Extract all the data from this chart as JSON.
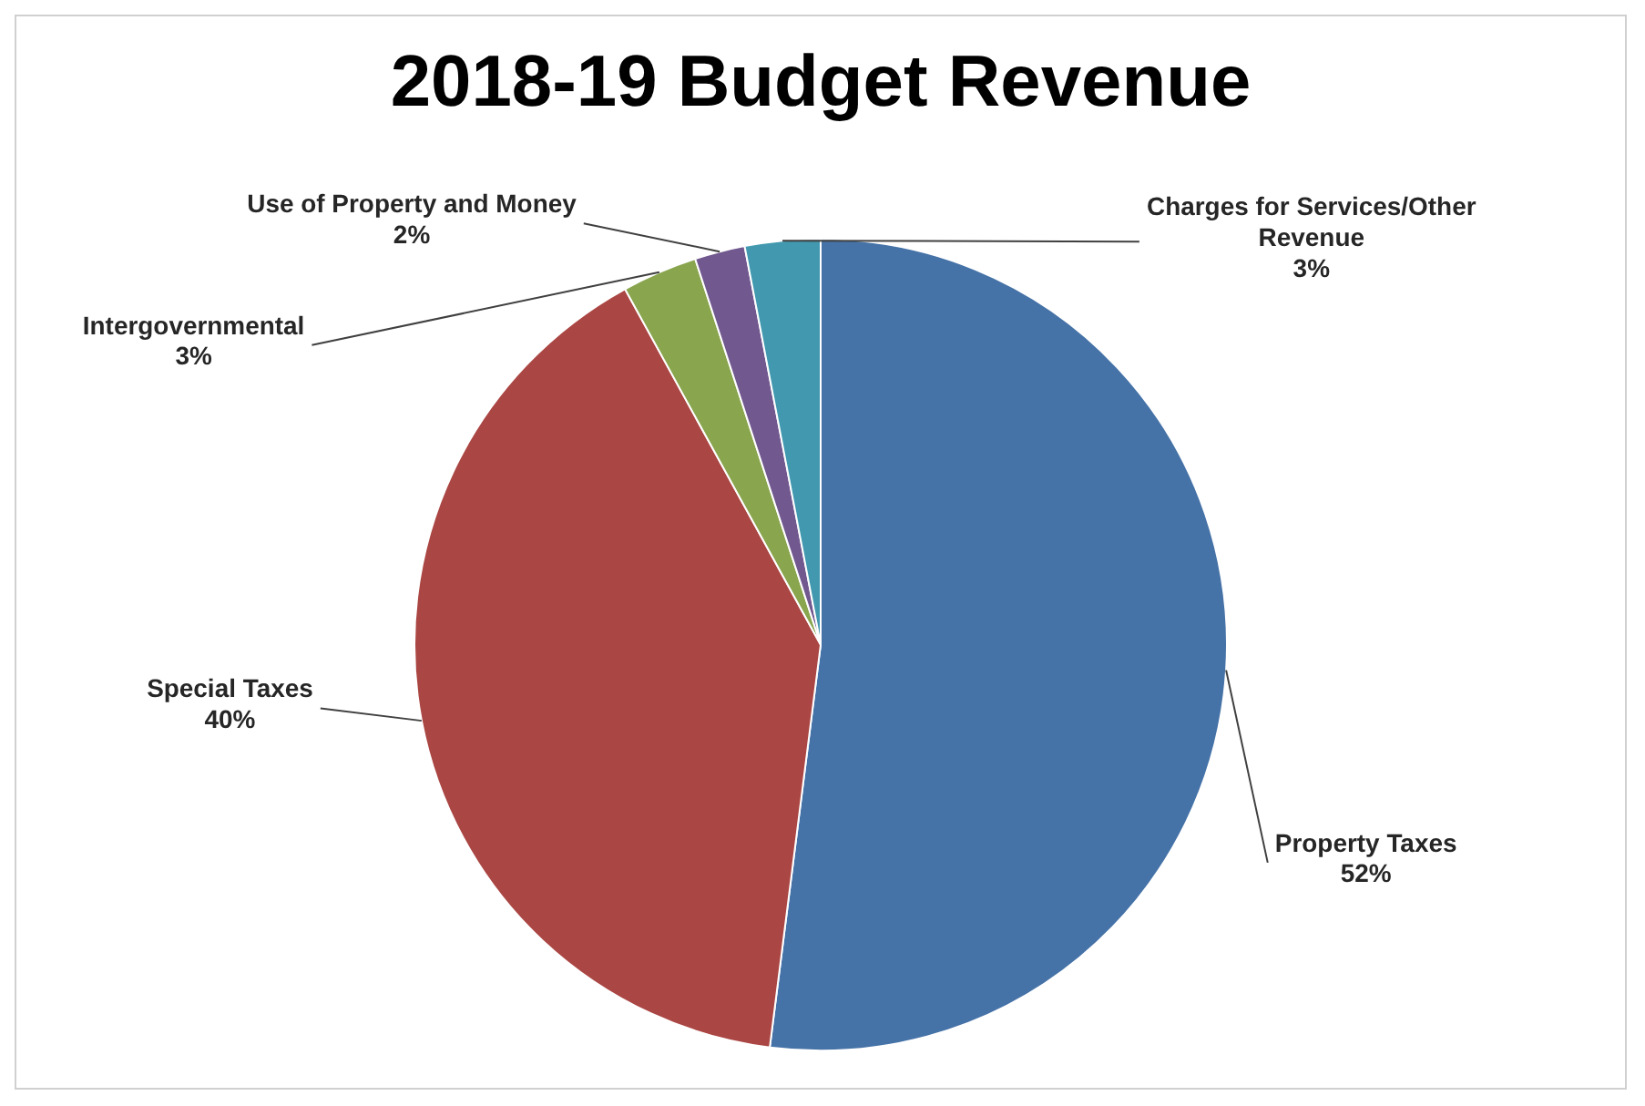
{
  "chart_data": {
    "type": "pie",
    "title": "2018-19 Budget Revenue",
    "categories": [
      "Property Taxes",
      "Special Taxes",
      "Intergovernmental",
      "Use of Property and Money",
      "Charges for Services/Other Revenue"
    ],
    "values": [
      52,
      40,
      3,
      2,
      3
    ],
    "colors": [
      "#4572a7",
      "#aa4643",
      "#89a54e",
      "#71588f",
      "#4198af"
    ],
    "value_labels": [
      "52%",
      "40%",
      "3%",
      "2%",
      "3%"
    ],
    "legend": false
  }
}
